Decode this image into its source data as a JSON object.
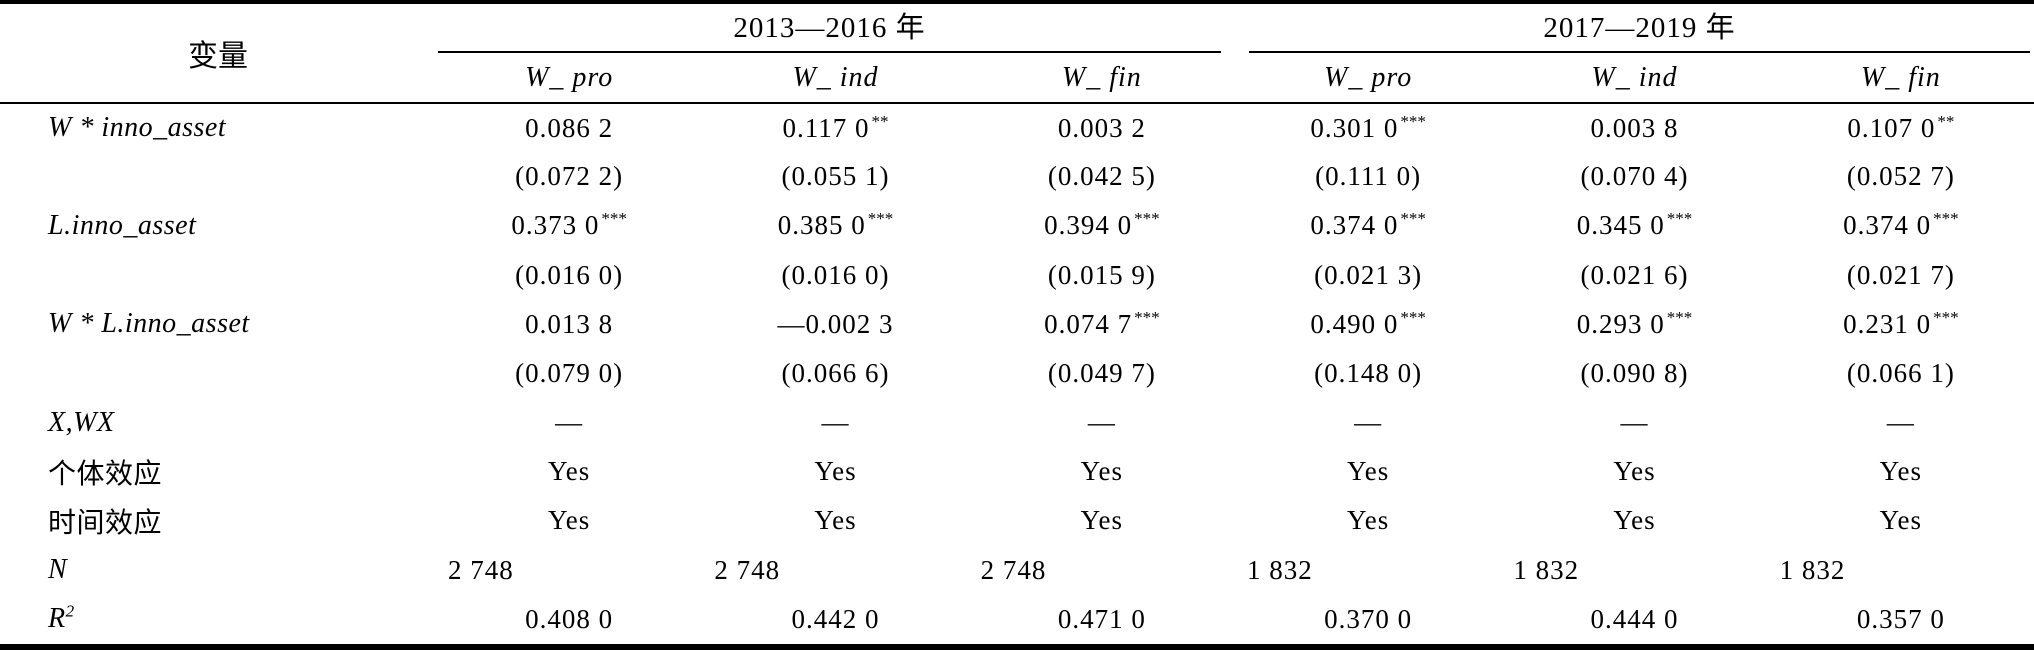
{
  "table": {
    "variable_header": "变量",
    "groups": [
      {
        "label": "2013—2016 年",
        "columns": [
          "W_ pro",
          "W_ ind",
          "W_ fin"
        ]
      },
      {
        "label": "2017—2019 年",
        "columns": [
          "W_ pro",
          "W_ ind",
          "W_ fin"
        ]
      }
    ],
    "rows": [
      {
        "label": "W * inno_asset",
        "italic": true,
        "values": [
          "0.086 2",
          "0.117 0",
          "0.003 2",
          "0.301 0",
          "0.003 8",
          "0.107 0"
        ],
        "sig": [
          "",
          "**",
          "",
          "***",
          "",
          "**"
        ]
      },
      {
        "label": "",
        "italic": true,
        "values": [
          "(0.072 2)",
          "(0.055 1)",
          "(0.042 5)",
          "(0.111 0)",
          "(0.070 4)",
          "(0.052 7)"
        ],
        "sig": [
          "",
          "",
          "",
          "",
          "",
          ""
        ]
      },
      {
        "label": "L.inno_asset",
        "italic": true,
        "values": [
          "0.373 0",
          "0.385 0",
          "0.394 0",
          "0.374 0",
          "0.345 0",
          "0.374 0"
        ],
        "sig": [
          "***",
          "***",
          "***",
          "***",
          "***",
          "***"
        ]
      },
      {
        "label": "",
        "italic": true,
        "values": [
          "(0.016 0)",
          "(0.016 0)",
          "(0.015 9)",
          "(0.021 3)",
          "(0.021 6)",
          "(0.021 7)"
        ],
        "sig": [
          "",
          "",
          "",
          "",
          "",
          ""
        ]
      },
      {
        "label": "W * L.inno_asset",
        "italic": true,
        "values": [
          "0.013 8",
          "—0.002 3",
          "0.074 7",
          "0.490 0",
          "0.293 0",
          "0.231 0"
        ],
        "sig": [
          "",
          "",
          "***",
          "***",
          "***",
          "***"
        ]
      },
      {
        "label": "",
        "italic": true,
        "values": [
          "(0.079 0)",
          "(0.066 6)",
          "(0.049 7)",
          "(0.148 0)",
          "(0.090 8)",
          "(0.066 1)"
        ],
        "sig": [
          "",
          "",
          "",
          "",
          "",
          ""
        ]
      },
      {
        "label": "X,WX",
        "italic": true,
        "values": [
          "—",
          "—",
          "—",
          "—",
          "—",
          "—"
        ],
        "sig": [
          "",
          "",
          "",
          "",
          "",
          ""
        ]
      },
      {
        "label": "个体效应",
        "italic": false,
        "values": [
          "Yes",
          "Yes",
          "Yes",
          "Yes",
          "Yes",
          "Yes"
        ],
        "sig": [
          "",
          "",
          "",
          "",
          "",
          ""
        ]
      },
      {
        "label": "时间效应",
        "italic": false,
        "values": [
          "Yes",
          "Yes",
          "Yes",
          "Yes",
          "Yes",
          "Yes"
        ],
        "sig": [
          "",
          "",
          "",
          "",
          "",
          ""
        ]
      },
      {
        "label": "N",
        "italic": true,
        "align": "left",
        "values": [
          "2 748",
          "2 748",
          "2 748",
          "1 832",
          "1 832",
          "1 832"
        ],
        "sig": [
          "",
          "",
          "",
          "",
          "",
          ""
        ]
      },
      {
        "label": "R",
        "label_sup": "2",
        "italic": true,
        "values": [
          "0.408 0",
          "0.442 0",
          "0.471 0",
          "0.370 0",
          "0.444 0",
          "0.357 0"
        ],
        "sig": [
          "",
          "",
          "",
          "",
          "",
          ""
        ]
      }
    ]
  }
}
